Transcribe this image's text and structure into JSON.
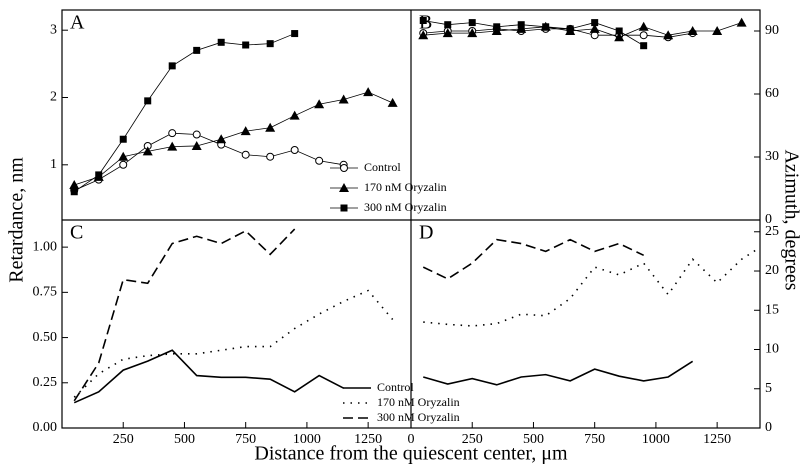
{
  "chart_data": [
    {
      "type": "line",
      "title": "A",
      "ylabel": "Retardance, nm",
      "xlim": [
        0,
        1425
      ],
      "ylim": [
        0.18,
        3.3
      ],
      "yticks": [
        1,
        2,
        3
      ],
      "legend": "lower right",
      "series": [
        {
          "name": "Control",
          "color": "#000000",
          "marker": "circle-open",
          "x": [
            50,
            150,
            250,
            350,
            450,
            550,
            650,
            750,
            850,
            950,
            1050,
            1150
          ],
          "values": [
            0.62,
            0.78,
            1.0,
            1.28,
            1.47,
            1.45,
            1.3,
            1.15,
            1.12,
            1.22,
            1.06,
            1.0
          ]
        },
        {
          "name": "170 nM Oryzalin",
          "color": "#000000",
          "marker": "triangle",
          "x": [
            50,
            150,
            250,
            350,
            450,
            550,
            650,
            750,
            850,
            950,
            1050,
            1150,
            1250,
            1350
          ],
          "values": [
            0.7,
            0.82,
            1.12,
            1.2,
            1.27,
            1.28,
            1.38,
            1.5,
            1.55,
            1.73,
            1.9,
            1.97,
            2.08,
            1.92
          ]
        },
        {
          "name": "300 nM Oryzalin",
          "color": "#000000",
          "marker": "square",
          "x": [
            50,
            150,
            250,
            350,
            450,
            550,
            650,
            750,
            850,
            950
          ],
          "values": [
            0.6,
            0.85,
            1.38,
            1.95,
            2.47,
            2.7,
            2.82,
            2.78,
            2.8,
            2.95
          ]
        }
      ]
    },
    {
      "type": "line",
      "title": "B",
      "ylabel": "Azimuth, degrees",
      "xlim": [
        0,
        1425
      ],
      "ylim": [
        0,
        100
      ],
      "yticks": [
        0,
        30,
        60,
        90
      ],
      "series": [
        {
          "color": "#000000",
          "marker": "circle-open",
          "x": [
            50,
            150,
            250,
            350,
            450,
            550,
            650,
            750,
            850,
            950,
            1050,
            1150
          ],
          "values": [
            89,
            90,
            90,
            91,
            90,
            91,
            91,
            88,
            88,
            88,
            87,
            89
          ]
        },
        {
          "color": "#000000",
          "marker": "triangle",
          "x": [
            50,
            150,
            250,
            350,
            450,
            550,
            650,
            750,
            850,
            950,
            1050,
            1150,
            1250,
            1350
          ],
          "values": [
            88,
            89,
            89,
            90,
            91,
            92,
            90,
            91,
            87,
            92,
            88,
            90,
            90,
            94
          ]
        },
        {
          "color": "#000000",
          "marker": "square",
          "x": [
            50,
            150,
            250,
            350,
            450,
            550,
            650,
            750,
            850,
            950
          ],
          "values": [
            95,
            93,
            94,
            92,
            93,
            92,
            91,
            94,
            90,
            83
          ]
        }
      ]
    },
    {
      "type": "line",
      "title": "C",
      "xlabel": "Distance from the quiescent center, μm",
      "xlim": [
        0,
        1425
      ],
      "ylim": [
        0,
        1.15
      ],
      "xticks": [
        250,
        500,
        750,
        1000,
        1250
      ],
      "yticks": [
        {
          "value": 0,
          "label": "0.00"
        },
        0.25,
        {
          "value": 0.5,
          "label": "0.50"
        },
        0.75,
        {
          "value": 1,
          "label": "1.00"
        }
      ],
      "legend": "lower right",
      "series": [
        {
          "name": "Control",
          "color": "#000000",
          "dash": "solid",
          "x": [
            50,
            150,
            250,
            350,
            450,
            550,
            650,
            750,
            850,
            950,
            1050,
            1150
          ],
          "values": [
            0.14,
            0.2,
            0.32,
            0.37,
            0.43,
            0.29,
            0.28,
            0.28,
            0.27,
            0.2,
            0.29,
            0.22
          ]
        },
        {
          "name": "170 nM Oryzalin",
          "color": "#000000",
          "dash": "dotted",
          "x": [
            50,
            150,
            250,
            350,
            450,
            550,
            650,
            750,
            850,
            950,
            1050,
            1150,
            1250,
            1350
          ],
          "values": [
            0.17,
            0.3,
            0.38,
            0.4,
            0.41,
            0.41,
            0.43,
            0.45,
            0.45,
            0.55,
            0.63,
            0.7,
            0.76,
            0.6
          ]
        },
        {
          "name": "300 nM Oryzalin",
          "color": "#000000",
          "dash": "dashed",
          "x": [
            50,
            150,
            250,
            350,
            450,
            550,
            650,
            750,
            850,
            950
          ],
          "values": [
            0.15,
            0.36,
            0.82,
            0.8,
            1.02,
            1.06,
            1.02,
            1.09,
            0.96,
            1.1
          ]
        }
      ]
    },
    {
      "type": "line",
      "title": "D",
      "xlim": [
        0,
        1425
      ],
      "ylim": [
        0,
        26.5
      ],
      "xticks": [
        0,
        250,
        500,
        750,
        1000,
        1250
      ],
      "yticks": [
        0,
        5,
        10,
        15,
        20,
        25
      ],
      "series": [
        {
          "color": "#000000",
          "dash": "solid",
          "x": [
            50,
            150,
            250,
            350,
            450,
            550,
            650,
            750,
            850,
            950,
            1050,
            1150
          ],
          "values": [
            6.5,
            5.6,
            6.3,
            5.5,
            6.5,
            6.8,
            6,
            7.5,
            6.6,
            6,
            6.5,
            8.5
          ]
        },
        {
          "color": "#000000",
          "dash": "dotted",
          "x": [
            50,
            150,
            250,
            350,
            450,
            550,
            650,
            750,
            850,
            950,
            1050,
            1150,
            1250,
            1350,
            1425
          ],
          "values": [
            13.5,
            13.2,
            13,
            13.3,
            14.5,
            14.3,
            16.5,
            20.5,
            19.5,
            21,
            17,
            21.5,
            18.5,
            21.5,
            23
          ]
        },
        {
          "color": "#000000",
          "dash": "dashed",
          "x": [
            50,
            150,
            250,
            350,
            450,
            550,
            650,
            750,
            850,
            950
          ],
          "values": [
            20.5,
            19,
            21,
            24,
            23.5,
            22.5,
            24,
            22.5,
            23.5,
            22
          ]
        }
      ]
    }
  ]
}
